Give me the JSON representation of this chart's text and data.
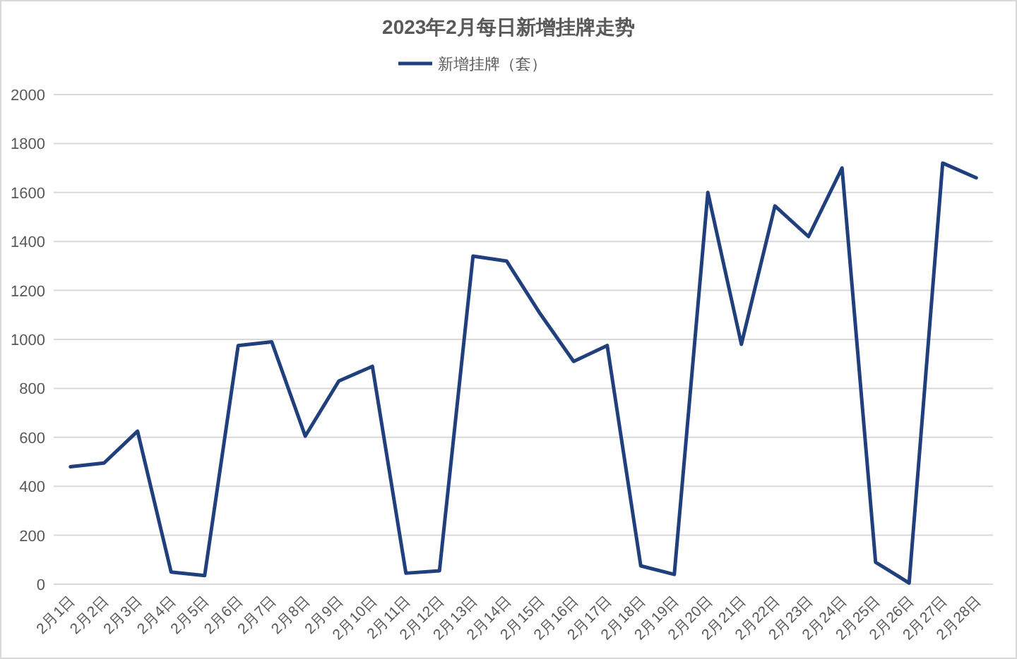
{
  "chart_data": {
    "type": "line",
    "title": "2023年2月每日新增挂牌走势",
    "categories": [
      "2月1日",
      "2月2日",
      "2月3日",
      "2月4日",
      "2月5日",
      "2月6日",
      "2月7日",
      "2月8日",
      "2月9日",
      "2月10日",
      "2月11日",
      "2月12日",
      "2月13日",
      "2月14日",
      "2月15日",
      "2月16日",
      "2月17日",
      "2月18日",
      "2月19日",
      "2月20日",
      "2月21日",
      "2月22日",
      "2月23日",
      "2月24日",
      "2月25日",
      "2月26日",
      "2月27日",
      "2月28日"
    ],
    "series": [
      {
        "name": "新增挂牌（套）",
        "color": "#203f7d",
        "values": [
          480,
          495,
          625,
          50,
          35,
          975,
          990,
          605,
          830,
          890,
          45,
          55,
          1340,
          1320,
          1105,
          910,
          975,
          75,
          40,
          1600,
          980,
          1545,
          1420,
          1700,
          90,
          5,
          1720,
          1660
        ]
      }
    ],
    "ylim": [
      0,
      2000
    ],
    "yticks": [
      0,
      200,
      400,
      600,
      800,
      1000,
      1200,
      1400,
      1600,
      1800,
      2000
    ],
    "grid": "y",
    "legend": "top",
    "marker": "none",
    "line_style": "solid"
  }
}
